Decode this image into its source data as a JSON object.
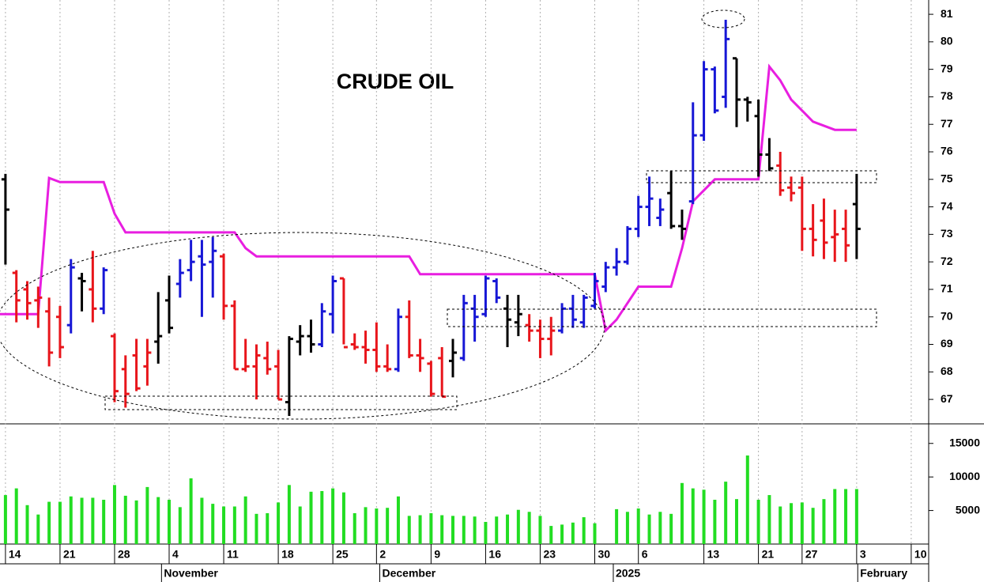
{
  "chart_data": {
    "type": "ohlc",
    "title": "CRUDE OIL",
    "open": [
      75.0,
      71.6,
      71.0,
      70.6,
      70.2,
      70.0,
      69.7,
      71.4,
      71.0,
      70.3,
      69.3,
      68.1,
      68.6,
      68.2,
      69.1,
      70.6,
      71.2,
      71.7,
      72.2,
      72.0,
      72.2,
      70.4,
      68.1,
      68.2,
      68.5,
      68.2,
      66.9,
      69.1,
      69.3,
      69.0,
      70.1,
      71.4,
      69.0,
      68.9,
      68.8,
      68.2,
      68.1,
      70.0,
      68.6,
      68.3,
      68.5,
      68.4,
      68.5,
      70.3,
      70.1,
      71.3,
      70.3,
      69.8,
      69.7,
      69.5,
      69.2,
      69.5,
      70.3,
      69.8,
      70.4,
      71.1,
      71.8,
      72.0,
      73.2,
      74.0,
      73.6,
      74.5,
      73.3,
      74.2,
      76.6,
      79.0,
      78.0,
      79.4,
      77.9,
      77.3,
      75.9,
      75.5,
      74.7,
      74.7,
      73.2,
      73.5,
      72.9,
      73.2,
      74.1
    ],
    "high": [
      75.2,
      71.7,
      71.3,
      71.1,
      70.7,
      70.4,
      72.1,
      71.6,
      72.4,
      71.8,
      69.4,
      68.6,
      69.2,
      69.2,
      70.9,
      71.5,
      72.1,
      72.8,
      72.8,
      72.9,
      72.3,
      70.6,
      69.2,
      69.0,
      69.1,
      68.8,
      69.3,
      69.7,
      69.9,
      70.5,
      71.5,
      71.4,
      69.4,
      69.5,
      69.8,
      69.0,
      70.3,
      70.6,
      69.2,
      68.4,
      68.9,
      69.2,
      70.8,
      70.8,
      71.5,
      71.4,
      70.8,
      70.8,
      70.1,
      69.9,
      70.0,
      70.5,
      70.8,
      70.8,
      71.6,
      72.0,
      72.5,
      73.3,
      74.4,
      75.1,
      74.3,
      75.3,
      73.9,
      77.8,
      79.3,
      79.1,
      80.8,
      79.4,
      78.0,
      77.9,
      76.5,
      76.0,
      75.1,
      75.1,
      74.1,
      74.3,
      73.9,
      73.9,
      75.2
    ],
    "low": [
      71.9,
      69.8,
      69.9,
      69.6,
      68.2,
      68.5,
      69.4,
      70.2,
      69.8,
      70.1,
      66.9,
      66.7,
      67.3,
      67.5,
      68.3,
      69.4,
      70.7,
      71.3,
      70.0,
      70.7,
      69.9,
      68.1,
      68.0,
      67.0,
      67.9,
      67.0,
      66.4,
      68.6,
      68.7,
      68.9,
      69.4,
      69.0,
      68.8,
      68.3,
      68.0,
      68.0,
      68.0,
      68.5,
      68.0,
      67.1,
      67.1,
      67.8,
      68.4,
      69.1,
      70.0,
      70.5,
      68.9,
      69.3,
      69.1,
      68.5,
      68.6,
      69.4,
      69.6,
      69.6,
      70.3,
      70.9,
      71.5,
      71.9,
      72.9,
      73.3,
      73.3,
      73.2,
      72.8,
      74.1,
      76.4,
      77.4,
      77.6,
      76.9,
      77.1,
      75.1,
      75.3,
      74.4,
      74.2,
      72.4,
      72.2,
      72.1,
      72.0,
      72.0,
      72.1
    ],
    "close": [
      73.9,
      70.6,
      70.5,
      70.7,
      68.7,
      68.9,
      71.8,
      71.3,
      70.3,
      71.7,
      67.3,
      67.2,
      67.4,
      68.7,
      69.3,
      69.6,
      71.6,
      72.0,
      71.9,
      72.4,
      70.4,
      68.1,
      68.2,
      68.6,
      68.1,
      67.0,
      69.2,
      69.3,
      69.0,
      70.2,
      71.3,
      68.9,
      68.9,
      68.8,
      68.2,
      68.1,
      70.0,
      68.6,
      68.5,
      67.2,
      67.1,
      68.7,
      70.5,
      70.0,
      71.4,
      70.7,
      69.9,
      70.1,
      69.5,
      69.2,
      69.5,
      70.3,
      69.9,
      70.7,
      71.3,
      71.8,
      72.0,
      73.2,
      74.0,
      74.3,
      73.9,
      73.3,
      73.2,
      76.6,
      79.0,
      77.5,
      80.1,
      77.9,
      77.8,
      75.9,
      75.4,
      74.6,
      74.5,
      73.2,
      72.8,
      72.7,
      73.0,
      72.6,
      73.2
    ],
    "colors": [
      "#000000",
      "#e8151b",
      "#e8151b",
      "#e8151b",
      "#e8151b",
      "#e8151b",
      "#1717d6",
      "#000000",
      "#e8151b",
      "#1717d6",
      "#e8151b",
      "#e8151b",
      "#e8151b",
      "#e8151b",
      "#000000",
      "#000000",
      "#1717d6",
      "#1717d6",
      "#1717d6",
      "#1717d6",
      "#e8151b",
      "#e8151b",
      "#e8151b",
      "#e8151b",
      "#e8151b",
      "#e8151b",
      "#000000",
      "#000000",
      "#000000",
      "#1717d6",
      "#1717d6",
      "#e8151b",
      "#e8151b",
      "#e8151b",
      "#e8151b",
      "#e8151b",
      "#1717d6",
      "#e8151b",
      "#e8151b",
      "#e8151b",
      "#e8151b",
      "#000000",
      "#1717d6",
      "#1717d6",
      "#1717d6",
      "#1717d6",
      "#000000",
      "#000000",
      "#e8151b",
      "#e8151b",
      "#e8151b",
      "#1717d6",
      "#1717d6",
      "#1717d6",
      "#1717d6",
      "#1717d6",
      "#1717d6",
      "#1717d6",
      "#1717d6",
      "#1717d6",
      "#1717d6",
      "#000000",
      "#000000",
      "#1717d6",
      "#1717d6",
      "#1717d6",
      "#1717d6",
      "#000000",
      "#000000",
      "#000000",
      "#000000",
      "#e8151b",
      "#e8151b",
      "#e8151b",
      "#e8151b",
      "#e8151b",
      "#e8151b",
      "#e8151b",
      "#000000"
    ],
    "xlim": [
      -0.5,
      84.6
    ],
    "ylim": [
      66.14,
      81.52
    ],
    "yticks": [
      67,
      68,
      69,
      70,
      71,
      72,
      73,
      74,
      75,
      76,
      77,
      78,
      79,
      80,
      81
    ],
    "xticks": [
      {
        "value": 0,
        "label": "14"
      },
      {
        "value": 5,
        "label": "21"
      },
      {
        "value": 10,
        "label": "28"
      },
      {
        "value": 15,
        "label": "4"
      },
      {
        "value": 20,
        "label": "11"
      },
      {
        "value": 25,
        "label": "18"
      },
      {
        "value": 30,
        "label": "25"
      },
      {
        "value": 34,
        "label": "2"
      },
      {
        "value": 39,
        "label": "9"
      },
      {
        "value": 44,
        "label": "16"
      },
      {
        "value": 49,
        "label": "23"
      },
      {
        "value": 54,
        "label": "30"
      },
      {
        "value": 58,
        "label": "6"
      },
      {
        "value": 64,
        "label": "13"
      },
      {
        "value": 69,
        "label": "21"
      },
      {
        "value": 73,
        "label": "27"
      },
      {
        "value": 78,
        "label": "3"
      },
      {
        "value": 83,
        "label": "10"
      }
    ],
    "month_ticks": [
      {
        "value": 14.3,
        "label": "November"
      },
      {
        "value": 34.3,
        "label": "December"
      },
      {
        "value": 55.7,
        "label": "2025"
      },
      {
        "value": 78.1,
        "label": "February"
      }
    ],
    "grid": true,
    "overlay": {
      "color": "#e81ee0",
      "x": [
        -0.5,
        3,
        4,
        5,
        9,
        10,
        11,
        21,
        22,
        23,
        37,
        38,
        54,
        55,
        56,
        58,
        61,
        62,
        63,
        65,
        69,
        70,
        71,
        72,
        73,
        74,
        76,
        78
      ],
      "values": [
        70.1,
        70.1,
        75.05,
        74.9,
        74.9,
        73.75,
        73.07,
        73.07,
        72.5,
        72.2,
        72.2,
        71.55,
        71.55,
        69.5,
        69.9,
        71.1,
        71.1,
        72.5,
        74.2,
        75.0,
        75.0,
        79.1,
        78.6,
        77.9,
        77.5,
        77.1,
        76.8,
        76.8
      ]
    },
    "volume": {
      "color": "#22dd22",
      "ylim": [
        0,
        17800
      ],
      "yticks": [
        5000,
        10000,
        15000
      ],
      "values": [
        7300,
        8300,
        5800,
        4400,
        6300,
        6300,
        7100,
        6900,
        6900,
        6600,
        8800,
        7200,
        6500,
        8500,
        7000,
        6600,
        5500,
        9800,
        6900,
        6000,
        5600,
        5600,
        7100,
        4500,
        4600,
        6200,
        8800,
        5600,
        7800,
        7900,
        8300,
        7700,
        4600,
        5500,
        5300,
        5400,
        7100,
        4200,
        4300,
        4600,
        4300,
        4200,
        4200,
        4100,
        3300,
        4100,
        4400,
        5100,
        4800,
        4200,
        2700,
        2900,
        3200,
        4000,
        3100,
        null,
        5200,
        4800,
        5300,
        4400,
        4800,
        4500,
        9100,
        8300,
        8100,
        6600,
        9300,
        6700,
        13200,
        6600,
        7300,
        5600,
        6100,
        6200,
        5400,
        6700,
        8200,
        8200,
        8200
      ]
    }
  }
}
